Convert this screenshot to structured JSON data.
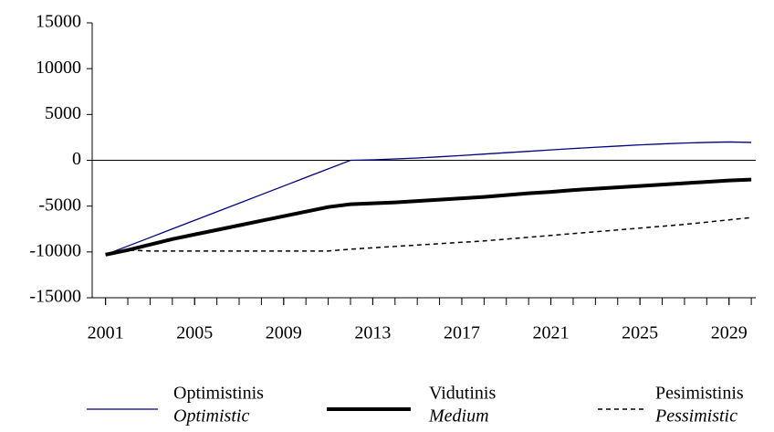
{
  "chart_data": {
    "type": "line",
    "x": [
      2001,
      2002,
      2003,
      2004,
      2005,
      2006,
      2007,
      2008,
      2009,
      2010,
      2011,
      2012,
      2013,
      2014,
      2015,
      2016,
      2017,
      2018,
      2019,
      2020,
      2021,
      2022,
      2023,
      2024,
      2025,
      2026,
      2027,
      2028,
      2029,
      2030
    ],
    "series": [
      {
        "name": "Optimistinis",
        "name_en": "Optimistic",
        "color": "#000080",
        "width": 1.3,
        "dash": false,
        "values": [
          -10300,
          -9364,
          -8427,
          -7491,
          -6555,
          -5618,
          -4682,
          -3745,
          -2809,
          -1873,
          -936,
          0,
          50,
          150,
          250,
          380,
          520,
          680,
          830,
          980,
          1130,
          1280,
          1420,
          1550,
          1680,
          1790,
          1880,
          1950,
          2000,
          1950
        ]
      },
      {
        "name": "Vidutinis",
        "name_en": "Medium",
        "color": "#000000",
        "width": 4,
        "dash": false,
        "values": [
          -10300,
          -9800,
          -9200,
          -8600,
          -8100,
          -7600,
          -7100,
          -6600,
          -6100,
          -5600,
          -5100,
          -4800,
          -4700,
          -4600,
          -4450,
          -4300,
          -4150,
          -4000,
          -3800,
          -3600,
          -3450,
          -3250,
          -3100,
          -2950,
          -2800,
          -2650,
          -2500,
          -2350,
          -2200,
          -2100
        ]
      },
      {
        "name": "Pesimistinis",
        "name_en": "Pessimistic",
        "color": "#000000",
        "width": 1.5,
        "dash": true,
        "values": [
          -10300,
          -9800,
          -9900,
          -9900,
          -9900,
          -9900,
          -9900,
          -9900,
          -9900,
          -9900,
          -9900,
          -9700,
          -9550,
          -9400,
          -9250,
          -9100,
          -8950,
          -8800,
          -8600,
          -8400,
          -8200,
          -8000,
          -7800,
          -7600,
          -7400,
          -7200,
          -7000,
          -6750,
          -6500,
          -6250
        ]
      }
    ],
    "xlim": [
      2000.4,
      2030.2
    ],
    "xticks": [
      2001,
      2005,
      2009,
      2013,
      2017,
      2021,
      2025,
      2029
    ],
    "ylim": [
      -15000,
      15000
    ],
    "yticks": [
      -15000,
      -10000,
      -5000,
      0,
      5000,
      10000,
      15000
    ],
    "legend": "bottom"
  }
}
